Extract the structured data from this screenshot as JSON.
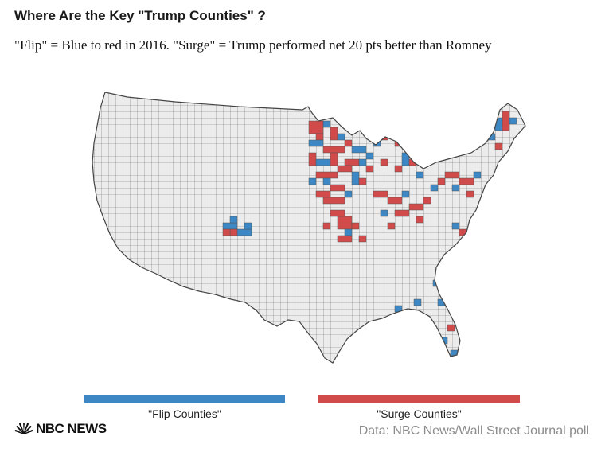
{
  "header": {
    "title": "Where Are the Key \"Trump Counties\" ?",
    "subtitle": "\"Flip\" = Blue to red in 2016. \"Surge\" = Trump performed net 20 pts better than Romney"
  },
  "map": {
    "region": "Contiguous United States, county boundaries",
    "base_fill": "#ececec",
    "border_color": "#555555"
  },
  "legend": {
    "flip": {
      "label": "\"Flip Counties\"",
      "color": "#3d87c4"
    },
    "surge": {
      "label": "\"Surge Counties\"",
      "color": "#d14b4b"
    }
  },
  "footer": {
    "brand": "NBC NEWS",
    "brand_icon": "peacock-logo-icon",
    "source": "Data: NBC News/Wall Street Journal poll"
  }
}
